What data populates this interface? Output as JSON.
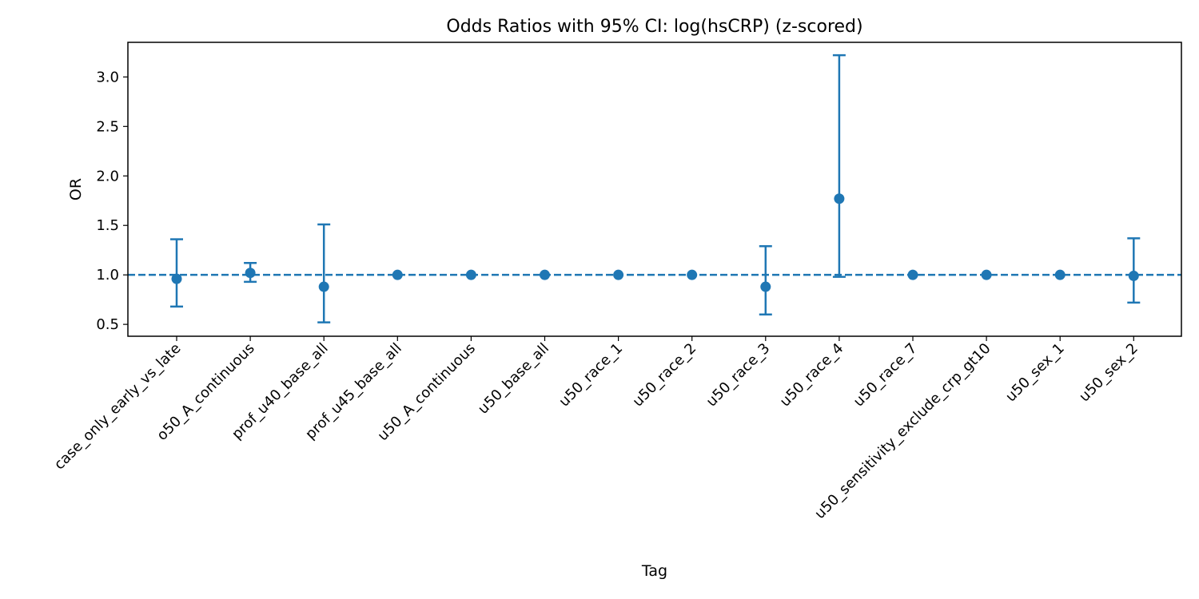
{
  "chart_data": {
    "type": "scatter",
    "title": "Odds Ratios with 95% CI: log(hsCRP) (z-scored)",
    "xlabel": "Tag",
    "ylabel": "OR",
    "ylim": [
      0.38,
      3.35
    ],
    "yticks": [
      0.5,
      1.0,
      1.5,
      2.0,
      2.5,
      3.0
    ],
    "ytick_labels": [
      "0.5",
      "1.0",
      "1.5",
      "2.0",
      "2.5",
      "3.0"
    ],
    "reference_line": 1.0,
    "grid": false,
    "legend": "none",
    "color": "#1f77b4",
    "categories": [
      "case_only_early_vs_late",
      "o50_A_continuous",
      "prof_u40_base_all",
      "prof_u45_base_all",
      "u50_A_continuous",
      "u50_base_all",
      "u50_race_1",
      "u50_race_2",
      "u50_race_3",
      "u50_race_4",
      "u50_race_7",
      "u50_sensitivity_exclude_crp_gt10",
      "u50_sex_1",
      "u50_sex_2"
    ],
    "values": [
      0.96,
      1.02,
      0.88,
      1.0,
      1.0,
      1.0,
      1.0,
      1.0,
      0.88,
      1.77,
      1.0,
      1.0,
      1.0,
      0.99
    ],
    "ci_lower": [
      0.68,
      0.93,
      0.52,
      null,
      null,
      null,
      null,
      null,
      0.6,
      0.98,
      null,
      null,
      null,
      0.72
    ],
    "ci_upper": [
      1.36,
      1.12,
      1.51,
      null,
      null,
      null,
      null,
      null,
      1.29,
      3.22,
      null,
      null,
      null,
      1.37
    ]
  }
}
